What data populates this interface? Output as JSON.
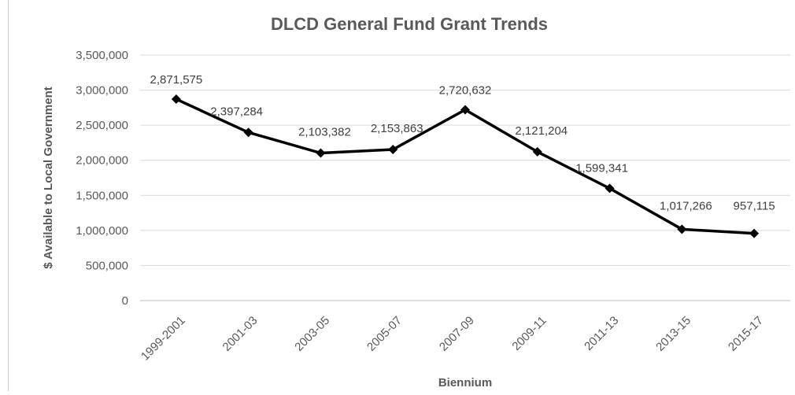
{
  "chart_data": {
    "type": "line",
    "title": "DLCD General Fund Grant Trends",
    "xlabel": "Biennium",
    "ylabel": "$ Available to Local Government",
    "categories": [
      "1999-2001",
      "2001-03",
      "2003-05",
      "2005-07",
      "2007-09",
      "2009-11",
      "2011-13",
      "2013-15",
      "2015-17"
    ],
    "series": [
      {
        "values": [
          2871575,
          2397284,
          2103382,
          2153863,
          2720632,
          2121204,
          1599341,
          1017266,
          957115
        ],
        "data_labels": [
          "2,871,575",
          "2,397,284",
          "2,103,382",
          "2,153,863",
          "2,720,632",
          "2,121,204",
          "1,599,341",
          "1,017,266",
          "957,115"
        ]
      }
    ],
    "ylim": [
      0,
      3500000
    ],
    "yticks": [
      0,
      500000,
      1000000,
      1500000,
      2000000,
      2500000,
      3000000,
      3500000
    ],
    "ytick_labels": [
      "0",
      "500,000",
      "1,000,000",
      "1,500,000",
      "2,000,000",
      "2,500,000",
      "3,000,000",
      "3,500,000"
    ],
    "grid": "horizontal",
    "legend": "none",
    "colors": {
      "line": "#000000",
      "marker": "#000000",
      "gridline": "#d9d9d9",
      "text": "#595959"
    },
    "marker": "diamond"
  }
}
